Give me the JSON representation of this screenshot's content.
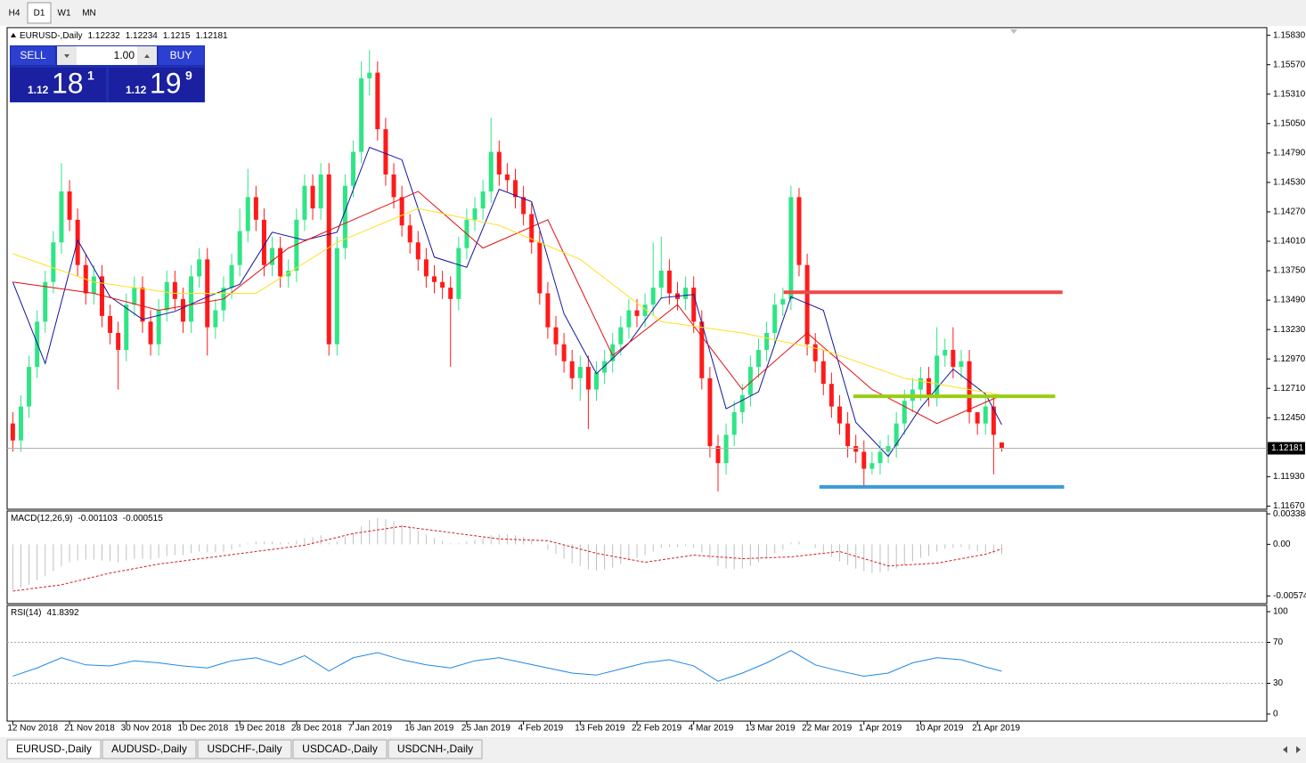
{
  "toolbar": {
    "buttons": [
      "H4",
      "D1",
      "W1",
      "MN"
    ]
  },
  "trade_panel": {
    "sell": "SELL",
    "lot": "1.00",
    "buy": "BUY",
    "bid": [
      "1.12",
      "18",
      "1"
    ],
    "ask": [
      "1.12",
      "19",
      "9"
    ]
  },
  "tabs": [
    "EURUSD-,Daily",
    "AUDUSD-,Daily",
    "USDCHF-,Daily",
    "USDCAD-,Daily",
    "USDCNH-,Daily"
  ],
  "chart_data": [
    {
      "type": "candlestick",
      "title": "EURUSD-,Daily",
      "open": [
        1.124,
        1.1225,
        1.1255,
        1.129,
        1.133,
        1.1365,
        1.14,
        1.1445,
        1.142,
        1.138,
        1.1355,
        1.137,
        1.1335,
        1.132,
        1.1305,
        1.1345,
        1.136,
        1.133,
        1.131,
        1.134,
        1.1365,
        1.135,
        1.133,
        1.137,
        1.1385,
        1.1325,
        1.134,
        1.136,
        1.138,
        1.141,
        1.144,
        1.142,
        1.138,
        1.1395,
        1.137,
        1.1375,
        1.142,
        1.145,
        1.143,
        1.146,
        1.131,
        1.1395,
        1.145,
        1.148,
        1.1545,
        1.155,
        1.15,
        1.146,
        1.144,
        1.1415,
        1.14,
        1.1385,
        1.137,
        1.1365,
        1.136,
        1.135,
        1.1395,
        1.142,
        1.143,
        1.1445,
        1.148,
        1.146,
        1.1455,
        1.144,
        1.1425,
        1.14,
        1.1355,
        1.1325,
        1.131,
        1.1295,
        1.128,
        1.129,
        1.127,
        1.1285,
        1.1295,
        1.131,
        1.1325,
        1.134,
        1.1335,
        1.1345,
        1.136,
        1.1375,
        1.1355,
        1.135,
        1.136,
        1.133,
        1.128,
        1.122,
        1.1205,
        1.123,
        1.125,
        1.1265,
        1.129,
        1.1305,
        1.132,
        1.1345,
        1.135,
        1.144,
        1.138,
        1.131,
        1.1295,
        1.1275,
        1.1255,
        1.124,
        1.122,
        1.1215,
        1.12,
        1.1205,
        1.1215,
        1.122,
        1.124,
        1.126,
        1.127,
        1.128,
        1.1265,
        1.13,
        1.1305,
        1.129,
        1.1295,
        1.125,
        1.124,
        1.1255,
        1.12232
      ],
      "high": [
        1.125,
        1.1265,
        1.13,
        1.134,
        1.1375,
        1.141,
        1.147,
        1.1455,
        1.143,
        1.139,
        1.138,
        1.138,
        1.1345,
        1.133,
        1.1355,
        1.137,
        1.137,
        1.134,
        1.135,
        1.1375,
        1.1375,
        1.136,
        1.138,
        1.1395,
        1.1395,
        1.135,
        1.137,
        1.139,
        1.143,
        1.1465,
        1.145,
        1.143,
        1.1405,
        1.1405,
        1.1385,
        1.143,
        1.146,
        1.146,
        1.147,
        1.147,
        1.1405,
        1.146,
        1.149,
        1.156,
        1.157,
        1.156,
        1.151,
        1.147,
        1.145,
        1.1425,
        1.141,
        1.1395,
        1.138,
        1.1375,
        1.137,
        1.1405,
        1.143,
        1.144,
        1.1455,
        1.151,
        1.149,
        1.147,
        1.1465,
        1.145,
        1.1435,
        1.141,
        1.1365,
        1.1335,
        1.132,
        1.1305,
        1.13,
        1.13,
        1.1295,
        1.1305,
        1.132,
        1.1335,
        1.135,
        1.135,
        1.1355,
        1.14,
        1.1405,
        1.1385,
        1.1365,
        1.137,
        1.137,
        1.134,
        1.129,
        1.123,
        1.124,
        1.126,
        1.1275,
        1.13,
        1.1315,
        1.133,
        1.1355,
        1.136,
        1.145,
        1.1448,
        1.139,
        1.132,
        1.1305,
        1.1285,
        1.1265,
        1.125,
        1.123,
        1.1225,
        1.1215,
        1.1225,
        1.123,
        1.125,
        1.127,
        1.128,
        1.129,
        1.129,
        1.1325,
        1.1315,
        1.1325,
        1.1305,
        1.1305,
        1.125,
        1.1265,
        1.1265,
        1.12234
      ],
      "low": [
        1.1215,
        1.1215,
        1.1245,
        1.128,
        1.132,
        1.1355,
        1.139,
        1.141,
        1.137,
        1.1345,
        1.1345,
        1.1325,
        1.131,
        1.127,
        1.1295,
        1.1335,
        1.132,
        1.13,
        1.13,
        1.133,
        1.134,
        1.132,
        1.132,
        1.136,
        1.13,
        1.1315,
        1.133,
        1.135,
        1.137,
        1.14,
        1.141,
        1.137,
        1.137,
        1.136,
        1.136,
        1.1365,
        1.141,
        1.142,
        1.142,
        1.13,
        1.13,
        1.1385,
        1.144,
        1.147,
        1.153,
        1.149,
        1.145,
        1.143,
        1.1405,
        1.139,
        1.1375,
        1.136,
        1.1355,
        1.135,
        1.129,
        1.134,
        1.1385,
        1.141,
        1.142,
        1.1435,
        1.145,
        1.1445,
        1.143,
        1.1415,
        1.139,
        1.1345,
        1.1315,
        1.13,
        1.1285,
        1.127,
        1.126,
        1.1235,
        1.126,
        1.1275,
        1.1285,
        1.13,
        1.1315,
        1.1325,
        1.1325,
        1.1335,
        1.135,
        1.1345,
        1.134,
        1.134,
        1.132,
        1.127,
        1.121,
        1.118,
        1.1195,
        1.122,
        1.124,
        1.1255,
        1.128,
        1.1295,
        1.131,
        1.1335,
        1.134,
        1.137,
        1.13,
        1.1285,
        1.1265,
        1.1245,
        1.123,
        1.121,
        1.1205,
        1.1185,
        1.1195,
        1.1195,
        1.1205,
        1.121,
        1.123,
        1.125,
        1.126,
        1.1255,
        1.1255,
        1.129,
        1.128,
        1.128,
        1.124,
        1.123,
        1.123,
        1.1195,
        1.1215
      ],
      "close": [
        1.1225,
        1.1255,
        1.129,
        1.133,
        1.1365,
        1.14,
        1.1445,
        1.142,
        1.138,
        1.1355,
        1.137,
        1.1335,
        1.132,
        1.1305,
        1.1345,
        1.136,
        1.133,
        1.131,
        1.134,
        1.1365,
        1.135,
        1.133,
        1.137,
        1.1385,
        1.1325,
        1.134,
        1.136,
        1.138,
        1.141,
        1.144,
        1.142,
        1.138,
        1.1395,
        1.137,
        1.1375,
        1.142,
        1.145,
        1.143,
        1.146,
        1.131,
        1.1395,
        1.145,
        1.148,
        1.1545,
        1.155,
        1.15,
        1.146,
        1.144,
        1.1415,
        1.14,
        1.1385,
        1.137,
        1.1365,
        1.136,
        1.135,
        1.1395,
        1.142,
        1.143,
        1.1445,
        1.148,
        1.146,
        1.1455,
        1.144,
        1.1425,
        1.14,
        1.1355,
        1.1325,
        1.131,
        1.1295,
        1.128,
        1.129,
        1.127,
        1.1285,
        1.1295,
        1.131,
        1.1325,
        1.134,
        1.1335,
        1.1345,
        1.136,
        1.1375,
        1.1355,
        1.135,
        1.136,
        1.133,
        1.128,
        1.122,
        1.1205,
        1.123,
        1.125,
        1.1265,
        1.129,
        1.1305,
        1.132,
        1.1345,
        1.135,
        1.144,
        1.138,
        1.131,
        1.1295,
        1.1275,
        1.1255,
        1.124,
        1.122,
        1.1215,
        1.12,
        1.1205,
        1.1215,
        1.122,
        1.124,
        1.126,
        1.127,
        1.128,
        1.1265,
        1.13,
        1.1305,
        1.129,
        1.1295,
        1.125,
        1.124,
        1.1255,
        1.123,
        1.12181
      ],
      "up_color": "#2fe585",
      "down_color": "#ff1a1a",
      "series": [
        {
          "color": "#1414a0",
          "x": [
            0,
            4,
            8,
            12,
            16,
            20,
            24,
            28,
            32,
            36,
            40,
            44,
            48,
            52,
            56,
            60,
            64,
            68,
            72,
            76,
            80,
            84,
            88,
            92,
            96,
            100,
            104,
            108,
            112,
            116,
            120,
            122
          ],
          "values": [
            1.1365,
            1.1293,
            1.1402,
            1.1352,
            1.1332,
            1.1339,
            1.1352,
            1.1363,
            1.1409,
            1.1402,
            1.1409,
            1.1484,
            1.1473,
            1.1387,
            1.1378,
            1.1447,
            1.1436,
            1.1337,
            1.1284,
            1.1311,
            1.1351,
            1.1354,
            1.1253,
            1.1268,
            1.1352,
            1.134,
            1.1241,
            1.1211,
            1.1254,
            1.1288,
            1.1266,
            1.1239
          ]
        },
        {
          "color": "#e01010",
          "x": [
            0,
            10,
            18,
            26,
            34,
            42,
            50,
            58,
            66,
            74,
            82,
            90,
            98,
            106,
            114,
            122
          ],
          "values": [
            1.1365,
            1.1355,
            1.134,
            1.135,
            1.1395,
            1.142,
            1.1445,
            1.1395,
            1.142,
            1.13,
            1.1345,
            1.127,
            1.132,
            1.127,
            1.124,
            1.1265
          ]
        },
        {
          "color": "#ffe020",
          "x": [
            0,
            10,
            20,
            30,
            40,
            50,
            60,
            70,
            80,
            90,
            100,
            110,
            122
          ],
          "values": [
            1.139,
            1.1365,
            1.1355,
            1.1355,
            1.14,
            1.143,
            1.1415,
            1.1385,
            1.133,
            1.132,
            1.1305,
            1.128,
            1.1265
          ]
        }
      ],
      "levels": [
        {
          "value": 1.1356,
          "color": "#f04848",
          "x": [
            95.1,
            129.5
          ]
        },
        {
          "value": 1.1264,
          "color": "#9acd12",
          "x": [
            103.7,
            128.6
          ]
        },
        {
          "value": 1.1184,
          "color": "#3a9ad9",
          "x": [
            99.5,
            129.7
          ]
        }
      ],
      "xlim": [
        -0.7,
        154.7
      ],
      "ylim": [
        1.1165,
        1.1589
      ],
      "yticks": [
        {
          "value": 1.1583,
          "label": "1.15830"
        },
        {
          "value": 1.1557,
          "label": "1.15570"
        },
        {
          "value": 1.1531,
          "label": "1.15310"
        },
        {
          "value": 1.1505,
          "label": "1.15050"
        },
        {
          "value": 1.1479,
          "label": "1.14790"
        },
        {
          "value": 1.1453,
          "label": "1.14530"
        },
        {
          "value": 1.1427,
          "label": "1.14270"
        },
        {
          "value": 1.1401,
          "label": "1.14010"
        },
        {
          "value": 1.1375,
          "label": "1.13750"
        },
        {
          "value": 1.1349,
          "label": "1.13490"
        },
        {
          "value": 1.1323,
          "label": "1.13230"
        },
        {
          "value": 1.1297,
          "label": "1.12970"
        },
        {
          "value": 1.1271,
          "label": "1.12710"
        },
        {
          "value": 1.1245,
          "label": "1.12450"
        },
        {
          "value": 1.1193,
          "label": "1.11930"
        },
        {
          "value": 1.1167,
          "label": "1.11670"
        }
      ],
      "xticks": [
        {
          "value": 0,
          "label": "12 Nov 2018"
        },
        {
          "value": 7,
          "label": "21 Nov 2018"
        },
        {
          "value": 14,
          "label": "30 Nov 2018"
        },
        {
          "value": 21,
          "label": "10 Dec 2018"
        },
        {
          "value": 28,
          "label": "19 Dec 2018"
        },
        {
          "value": 35,
          "label": "28 Dec 2018"
        },
        {
          "value": 42,
          "label": "7 Jan 2019"
        },
        {
          "value": 49,
          "label": "16 Jan 2019"
        },
        {
          "value": 56,
          "label": "25 Jan 2019"
        },
        {
          "value": 63,
          "label": "4 Feb 2019"
        },
        {
          "value": 70,
          "label": "13 Feb 2019"
        },
        {
          "value": 77,
          "label": "22 Feb 2019"
        },
        {
          "value": 84,
          "label": "4 Mar 2019"
        },
        {
          "value": 91,
          "label": "13 Mar 2019"
        },
        {
          "value": 98,
          "label": "22 Mar 2019"
        },
        {
          "value": 105,
          "label": "1 Apr 2019"
        },
        {
          "value": 112,
          "label": "10 Apr 2019"
        },
        {
          "value": 119,
          "label": "21 Apr 2019"
        }
      ]
    },
    {
      "type": "macd",
      "title": "MACD(12,26,9)",
      "values": [
        -0.005,
        -0.0048,
        -0.0045,
        -0.004,
        -0.0035,
        -0.003,
        -0.0024,
        -0.002,
        -0.0018,
        -0.0017,
        -0.0017,
        -0.0018,
        -0.0019,
        -0.002,
        -0.0018,
        -0.0016,
        -0.0016,
        -0.0017,
        -0.0015,
        -0.0013,
        -0.0012,
        -0.0012,
        -0.001,
        -0.0008,
        -0.0009,
        -0.0009,
        -0.0008,
        -0.0006,
        -0.0003,
        0.0001,
        0.0003,
        0.0003,
        0.0003,
        0.0002,
        0.0002,
        0.0004,
        0.0007,
        0.0008,
        0.001,
        0.0002,
        0.0003,
        0.0008,
        0.0012,
        0.002,
        0.0027,
        0.0029,
        0.0028,
        0.0026,
        0.0022,
        0.0019,
        0.0015,
        0.0011,
        0.0007,
        0.0004,
        0.0001,
        0.0001,
        0.0003,
        0.0005,
        0.0007,
        0.001,
        0.0011,
        0.0011,
        0.001,
        0.0008,
        0.0005,
        0.0,
        -0.0006,
        -0.0011,
        -0.0016,
        -0.0021,
        -0.0024,
        -0.0028,
        -0.0029,
        -0.0028,
        -0.0026,
        -0.0022,
        -0.0018,
        -0.0015,
        -0.0012,
        -0.0008,
        -0.0004,
        -0.0003,
        -0.0003,
        -0.0002,
        -0.0004,
        -0.0009,
        -0.0016,
        -0.0024,
        -0.0027,
        -0.0028,
        -0.0027,
        -0.0024,
        -0.002,
        -0.0015,
        -0.001,
        -0.0006,
        0.0002,
        0.0003,
        0.0,
        -0.0004,
        -0.0009,
        -0.0014,
        -0.0019,
        -0.0023,
        -0.0027,
        -0.003,
        -0.0032,
        -0.0031,
        -0.003,
        -0.0027,
        -0.0023,
        -0.0019,
        -0.0015,
        -0.0013,
        -0.0008,
        -0.0005,
        -0.0004,
        -0.0003,
        -0.0006,
        -0.0008,
        -0.0009,
        -0.001,
        -0.001103
      ],
      "color": "#c0c0c0",
      "signal": {
        "color": "#d02020",
        "x": [
          0,
          6,
          12,
          18,
          24,
          30,
          36,
          42,
          48,
          54,
          60,
          66,
          72,
          78,
          84,
          90,
          96,
          102,
          108,
          114,
          120,
          122
        ],
        "values": [
          -0.0052,
          -0.0045,
          -0.0032,
          -0.0022,
          -0.0015,
          -0.0008,
          -0.0001,
          0.0012,
          0.002,
          0.0013,
          0.0006,
          0.0004,
          -0.001,
          -0.002,
          -0.0012,
          -0.0016,
          -0.0014,
          -0.0008,
          -0.0024,
          -0.0021,
          -0.0011,
          -0.000515
        ]
      },
      "xlim": [
        -0.7,
        154.7
      ],
      "ylim": [
        -0.0065,
        0.0037
      ],
      "yticks": [
        0.003386,
        {
          "value": 0,
          "label": "0.00"
        },
        -0.00574
      ]
    },
    {
      "type": "rsi",
      "title": "RSI(14)",
      "color": "#1e88e5",
      "x": [
        0,
        3,
        6,
        9,
        12,
        15,
        18,
        21,
        24,
        27,
        30,
        33,
        36,
        39,
        42,
        45,
        48,
        51,
        54,
        57,
        60,
        63,
        66,
        69,
        72,
        75,
        78,
        81,
        84,
        87,
        90,
        93,
        96,
        99,
        102,
        105,
        108,
        111,
        114,
        117,
        120,
        122
      ],
      "values": [
        37,
        45,
        55,
        48,
        47,
        52,
        50,
        47,
        45,
        52,
        55,
        48,
        57,
        42,
        55,
        60,
        53,
        48,
        45,
        52,
        55,
        50,
        45,
        40,
        38,
        44,
        50,
        53,
        47,
        32,
        40,
        50,
        62,
        48,
        42,
        37,
        40,
        50,
        55,
        53,
        46,
        41.8392
      ],
      "xlim": [
        -0.7,
        154.7
      ],
      "ylim": [
        0,
        100
      ],
      "yticks": [
        100,
        70,
        30,
        0
      ],
      "grid": true
    }
  ]
}
